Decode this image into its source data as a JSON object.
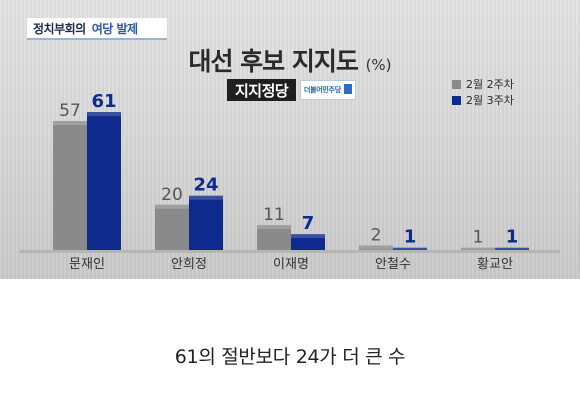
{
  "badge": {
    "program": "정치부회의",
    "topic": "여당 발제"
  },
  "title": {
    "main": "대선 후보 지지도",
    "unit": "(%)"
  },
  "subtitle": "지지정당",
  "party_logo": "더불어민주당",
  "caption": "61의 절반보다 24가 더 큰 수",
  "colors": {
    "series1": "#8a8a8a",
    "series2": "#0d2a8c",
    "label1": "#555555",
    "label2": "#0d2a8c"
  },
  "chart_data": {
    "type": "bar",
    "title": "대선 후보 지지도",
    "unit": "(%)",
    "subtitle": "지지정당",
    "categories": [
      "문재인",
      "안희정",
      "이재명",
      "안철수",
      "황교안"
    ],
    "series": [
      {
        "name": "2월 2주차",
        "values": [
          57,
          20,
          11,
          2,
          1
        ]
      },
      {
        "name": "2월 3주차",
        "values": [
          61,
          24,
          7,
          1,
          1
        ]
      }
    ],
    "ylim": [
      0,
      61
    ],
    "legend": "top-right",
    "grid": false
  }
}
